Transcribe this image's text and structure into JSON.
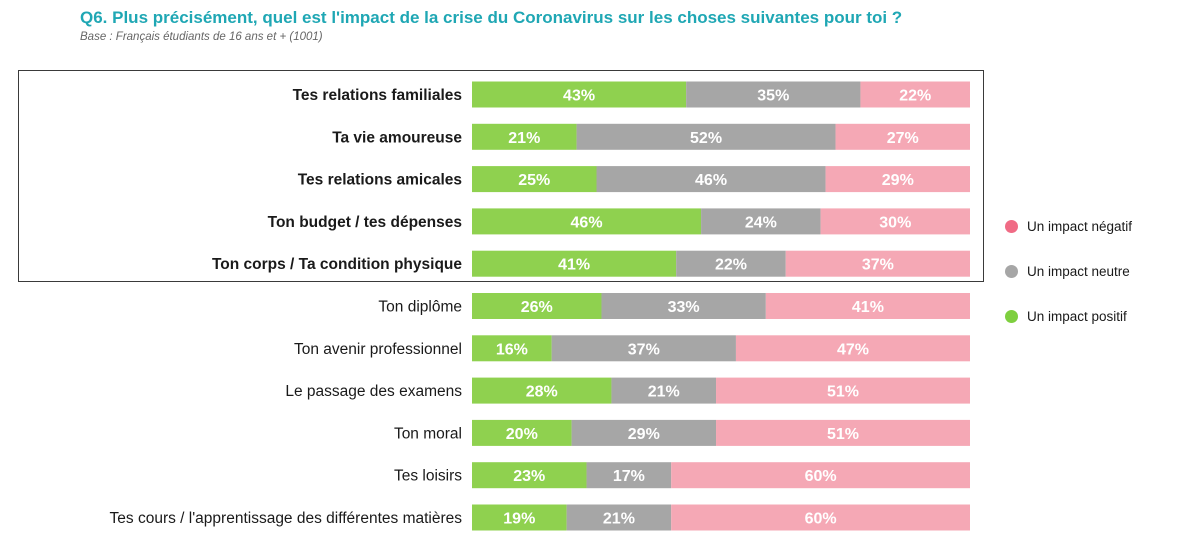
{
  "header": {
    "title": "Q6. Plus précisément, quel est l'impact de la crise du Coronavirus sur les choses suivantes pour toi ?",
    "subtitle": "Base : Français étudiants de 16 ans et + (1001)"
  },
  "colors": {
    "positif": "#8fd14f",
    "neutre": "#a6a6a6",
    "negatif": "#f5a8b5",
    "legend_negatif": "#f06b85",
    "legend_neutre": "#a6a6a6",
    "legend_positif": "#7ecf3f",
    "title": "#1fa7b4"
  },
  "legend": [
    {
      "label": "Un impact négatif",
      "color_key": "legend_negatif"
    },
    {
      "label": "Un impact neutre",
      "color_key": "legend_neutre"
    },
    {
      "label": "Un impact positif",
      "color_key": "legend_positif"
    }
  ],
  "chart_data": {
    "type": "bar",
    "orientation": "horizontal",
    "stacked": true,
    "percent": true,
    "categories": [
      "Tes relations familiales",
      "Ta vie amoureuse",
      "Tes relations amicales",
      "Ton budget / tes dépenses",
      "Ton corps / Ta condition physique",
      "Ton diplôme",
      "Ton avenir professionnel",
      "Le passage des examens",
      "Ton moral",
      "Tes loisirs",
      "Tes cours / l'apprentissage des différentes matières"
    ],
    "bold_categories": [
      0,
      1,
      2,
      3,
      4
    ],
    "series": [
      {
        "name": "Un impact positif",
        "color_key": "positif",
        "values": [
          43,
          21,
          25,
          46,
          41,
          26,
          16,
          28,
          20,
          23,
          19
        ]
      },
      {
        "name": "Un impact neutre",
        "color_key": "neutre",
        "values": [
          35,
          52,
          46,
          24,
          22,
          33,
          37,
          21,
          29,
          17,
          21
        ]
      },
      {
        "name": "Un impact négatif",
        "color_key": "negatif",
        "values": [
          22,
          27,
          29,
          30,
          37,
          41,
          47,
          51,
          51,
          60,
          60
        ]
      }
    ],
    "value_format": "{v}%",
    "xlim": [
      0,
      100
    ],
    "legend_position": "right"
  }
}
